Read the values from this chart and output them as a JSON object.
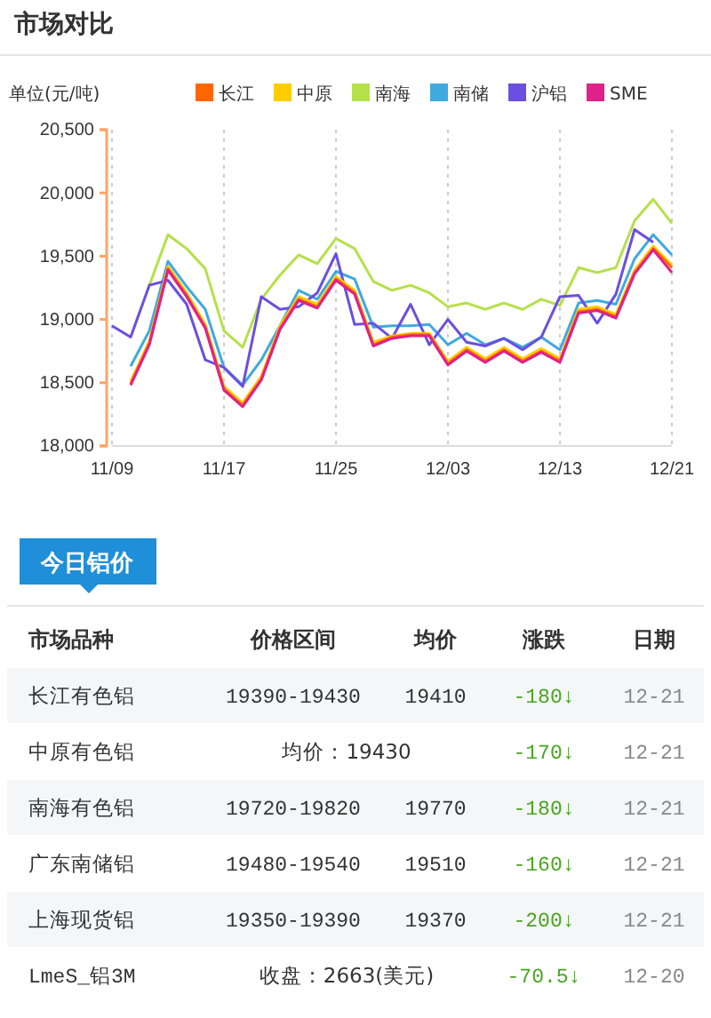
{
  "chart_data": [
    {
      "type": "line",
      "title": "市场对比",
      "ylabel": "单位(元/吨)",
      "categories": [
        "11/09",
        null,
        null,
        null,
        null,
        null,
        "11/17",
        null,
        null,
        null,
        null,
        null,
        "11/25",
        null,
        null,
        null,
        null,
        null,
        "12/03",
        null,
        null,
        null,
        null,
        null,
        "12/13",
        null,
        null,
        null,
        null,
        null,
        "12/21"
      ],
      "ylim": [
        18000,
        20500
      ],
      "yticks": [
        {
          "value": 18000,
          "label": "18,000"
        },
        {
          "value": 18500,
          "label": "18,500"
        },
        {
          "value": 19000,
          "label": "19,000"
        },
        {
          "value": 19500,
          "label": "19,500"
        },
        {
          "value": 20000,
          "label": "20,000"
        },
        {
          "value": 20500,
          "label": "20,500"
        }
      ],
      "grid": "x",
      "legend": "top right",
      "marker": "none",
      "line_style": "solid",
      "series": [
        {
          "name": "长江",
          "color": "#ff6600",
          "values": [
            null,
            18490,
            18810,
            19400,
            19190,
            18940,
            18450,
            18320,
            18530,
            18930,
            19160,
            19100,
            19320,
            19210,
            18800,
            18860,
            18880,
            18880,
            18650,
            18760,
            18670,
            18760,
            18670,
            18750,
            18670,
            19060,
            19080,
            19020,
            19370,
            19560,
            19410
          ]
        },
        {
          "name": "中原",
          "color": "#ffcc00",
          "values": [
            null,
            18510,
            18830,
            19420,
            19210,
            18960,
            18470,
            18340,
            18550,
            18950,
            19180,
            19120,
            19340,
            19230,
            18820,
            18870,
            18890,
            18890,
            18670,
            18780,
            18690,
            18780,
            18690,
            18770,
            18690,
            19080,
            19100,
            19040,
            19390,
            19580,
            19430
          ]
        },
        {
          "name": "南海",
          "color": "#b5e04a",
          "values": [
            null,
            null,
            19270,
            19670,
            19560,
            19400,
            18910,
            18780,
            19160,
            19350,
            19510,
            19440,
            19640,
            19560,
            19300,
            19230,
            19270,
            19210,
            19100,
            19130,
            19080,
            19130,
            19080,
            19160,
            19110,
            19410,
            19370,
            19410,
            19780,
            19950,
            19760
          ]
        },
        {
          "name": "南储",
          "color": "#3fa9e0",
          "values": [
            null,
            18630,
            18910,
            19460,
            19260,
            19080,
            18620,
            18480,
            18680,
            18950,
            19230,
            19160,
            19380,
            19320,
            18940,
            18950,
            18950,
            18960,
            18800,
            18890,
            18800,
            18850,
            18780,
            18860,
            18760,
            19130,
            19150,
            19120,
            19480,
            19670,
            19510
          ]
        },
        {
          "name": "沪铝",
          "color": "#6a4fe0",
          "values": [
            18950,
            18860,
            19270,
            19310,
            19120,
            18680,
            18620,
            18470,
            19180,
            19080,
            19100,
            19210,
            19520,
            18960,
            18970,
            18850,
            19120,
            18800,
            19000,
            18820,
            18790,
            18850,
            18760,
            18860,
            19180,
            19190,
            18970,
            19200,
            19710,
            19610,
            null
          ]
        },
        {
          "name": "SME",
          "color": "#e0218a",
          "values": [
            null,
            18480,
            18800,
            19390,
            19180,
            18930,
            18440,
            18310,
            18520,
            18920,
            19150,
            19090,
            19310,
            19200,
            18790,
            18850,
            18870,
            18870,
            18640,
            18750,
            18660,
            18750,
            18660,
            18740,
            18660,
            19050,
            19070,
            19010,
            19360,
            19550,
            19370
          ]
        }
      ]
    },
    {
      "type": "other",
      "title": "今日铝价",
      "annotations": [
        "市场品种",
        "价格区间",
        "均价",
        "涨跌",
        "日期",
        "长江有色铝",
        "19390-19430",
        "19410",
        "-180↓",
        "12-21",
        "中原有色铝",
        "均价：19430",
        "-170↓",
        "12-21",
        "南海有色铝",
        "19720-19820",
        "19770",
        "-180↓",
        "12-21",
        "广东南储铝",
        "19480-19540",
        "19510",
        "-160↓",
        "12-21",
        "上海现货铝",
        "19350-19390",
        "19370",
        "-200↓",
        "12-21",
        "LmeS_铝3M",
        "收盘：2663(美元)",
        "-70.5↓",
        "12-20"
      ]
    }
  ]
}
